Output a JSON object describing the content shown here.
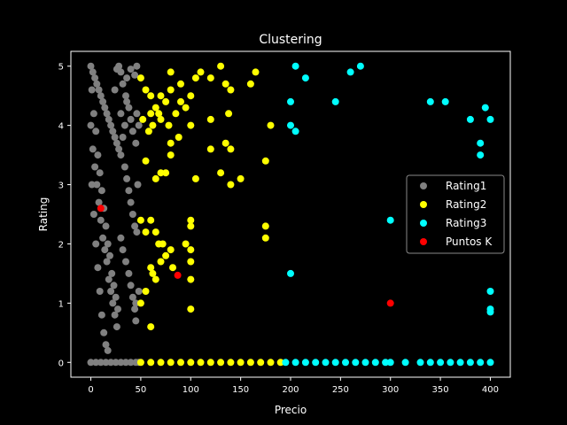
{
  "chart_data": {
    "type": "scatter",
    "title": "Clustering",
    "xlabel": "Precio",
    "ylabel": "Rating",
    "xlim": [
      -20,
      420
    ],
    "ylim": [
      -0.25,
      5.25
    ],
    "xticks": [
      0,
      50,
      100,
      150,
      200,
      250,
      300,
      350,
      400
    ],
    "yticks": [
      0,
      1,
      2,
      3,
      4,
      5
    ],
    "grid": false,
    "legend_position": "center-right",
    "background": "#000000",
    "series": [
      {
        "name": "Rating1",
        "color": "#808080",
        "points": [
          [
            0,
            5
          ],
          [
            2,
            4.9
          ],
          [
            4,
            4.8
          ],
          [
            6,
            4.7
          ],
          [
            8,
            4.6
          ],
          [
            10,
            4.5
          ],
          [
            12,
            4.4
          ],
          [
            14,
            4.3
          ],
          [
            16,
            4.2
          ],
          [
            18,
            4.1
          ],
          [
            20,
            4.0
          ],
          [
            22,
            3.9
          ],
          [
            24,
            3.8
          ],
          [
            26,
            3.7
          ],
          [
            28,
            3.6
          ],
          [
            30,
            3.5
          ],
          [
            1,
            4.6
          ],
          [
            3,
            4.2
          ],
          [
            5,
            3.9
          ],
          [
            7,
            3.5
          ],
          [
            9,
            3.2
          ],
          [
            11,
            2.9
          ],
          [
            13,
            2.6
          ],
          [
            15,
            2.3
          ],
          [
            17,
            2.0
          ],
          [
            19,
            1.8
          ],
          [
            21,
            1.5
          ],
          [
            23,
            1.3
          ],
          [
            25,
            1.1
          ],
          [
            27,
            0.9
          ],
          [
            0,
            4.0
          ],
          [
            2,
            3.6
          ],
          [
            4,
            3.3
          ],
          [
            6,
            3.0
          ],
          [
            8,
            2.7
          ],
          [
            10,
            2.4
          ],
          [
            12,
            2.1
          ],
          [
            14,
            1.9
          ],
          [
            16,
            1.7
          ],
          [
            18,
            1.4
          ],
          [
            20,
            1.2
          ],
          [
            22,
            1.0
          ],
          [
            24,
            0.8
          ],
          [
            26,
            0.6
          ],
          [
            1,
            3.0
          ],
          [
            3,
            2.5
          ],
          [
            5,
            2.0
          ],
          [
            7,
            1.6
          ],
          [
            9,
            1.2
          ],
          [
            11,
            0.8
          ],
          [
            13,
            0.5
          ],
          [
            15,
            0.3
          ],
          [
            17,
            0.2
          ],
          [
            30,
            4.9
          ],
          [
            32,
            4.7
          ],
          [
            35,
            4.5
          ],
          [
            38,
            4.3
          ],
          [
            40,
            4.1
          ],
          [
            42,
            3.9
          ],
          [
            45,
            3.7
          ],
          [
            34,
            3.3
          ],
          [
            36,
            3.1
          ],
          [
            38,
            2.9
          ],
          [
            40,
            2.7
          ],
          [
            42,
            2.5
          ],
          [
            44,
            2.3
          ],
          [
            30,
            2.1
          ],
          [
            32,
            1.9
          ],
          [
            35,
            1.7
          ],
          [
            38,
            1.5
          ],
          [
            40,
            1.3
          ],
          [
            42,
            1.1
          ],
          [
            44,
            0.9
          ],
          [
            45,
            0.7
          ],
          [
            28,
            5
          ],
          [
            26,
            4.95
          ],
          [
            24,
            4.6
          ],
          [
            30,
            4.2
          ],
          [
            32,
            3.8
          ],
          [
            34,
            4.0
          ],
          [
            36,
            4.4
          ],
          [
            46,
            4.2
          ],
          [
            48,
            4.0
          ],
          [
            47,
            3.0
          ],
          [
            46,
            2.2
          ],
          [
            48,
            1.2
          ],
          [
            45,
            1.0
          ],
          [
            46,
            5.0
          ],
          [
            44,
            4.85
          ],
          [
            40,
            4.95
          ],
          [
            36,
            4.8
          ],
          [
            0,
            0
          ],
          [
            5,
            0
          ],
          [
            10,
            0
          ],
          [
            15,
            0
          ],
          [
            20,
            0
          ],
          [
            25,
            0
          ],
          [
            30,
            0
          ],
          [
            35,
            0
          ],
          [
            40,
            0
          ],
          [
            45,
            0
          ],
          [
            48,
            0
          ]
        ]
      },
      {
        "name": "Rating2",
        "color": "#ffff00",
        "points": [
          [
            50,
            4.8
          ],
          [
            55,
            4.6
          ],
          [
            60,
            4.5
          ],
          [
            65,
            4.3
          ],
          [
            70,
            4.1
          ],
          [
            75,
            4.4
          ],
          [
            80,
            4.6
          ],
          [
            85,
            4.2
          ],
          [
            90,
            4.7
          ],
          [
            95,
            4.3
          ],
          [
            100,
            4.5
          ],
          [
            105,
            4.8
          ],
          [
            110,
            4.9
          ],
          [
            120,
            4.8
          ],
          [
            130,
            5.0
          ],
          [
            135,
            4.7
          ],
          [
            140,
            4.6
          ],
          [
            160,
            4.7
          ],
          [
            165,
            4.9
          ],
          [
            80,
            4.9
          ],
          [
            90,
            4.4
          ],
          [
            52,
            4.1
          ],
          [
            58,
            3.9
          ],
          [
            62,
            4.0
          ],
          [
            68,
            4.2
          ],
          [
            78,
            4.0
          ],
          [
            88,
            3.8
          ],
          [
            100,
            4.0
          ],
          [
            120,
            4.1
          ],
          [
            138,
            4.2
          ],
          [
            180,
            4.0
          ],
          [
            60,
            4.2
          ],
          [
            70,
            4.5
          ],
          [
            55,
            3.4
          ],
          [
            65,
            3.1
          ],
          [
            70,
            3.2
          ],
          [
            75,
            3.2
          ],
          [
            80,
            3.5
          ],
          [
            80,
            3.7
          ],
          [
            105,
            3.1
          ],
          [
            120,
            3.6
          ],
          [
            130,
            3.2
          ],
          [
            135,
            3.7
          ],
          [
            140,
            3.0
          ],
          [
            140,
            3.6
          ],
          [
            150,
            3.1
          ],
          [
            175,
            3.4
          ],
          [
            50,
            2.4
          ],
          [
            55,
            2.2
          ],
          [
            60,
            2.4
          ],
          [
            65,
            2.2
          ],
          [
            68,
            2.0
          ],
          [
            72,
            2.0
          ],
          [
            75,
            1.8
          ],
          [
            80,
            1.9
          ],
          [
            82,
            1.6
          ],
          [
            95,
            2.0
          ],
          [
            100,
            1.9
          ],
          [
            100,
            2.3
          ],
          [
            100,
            2.4
          ],
          [
            175,
            2.3
          ],
          [
            175,
            2.1
          ],
          [
            55,
            1.2
          ],
          [
            60,
            1.6
          ],
          [
            62,
            1.5
          ],
          [
            65,
            1.4
          ],
          [
            70,
            1.7
          ],
          [
            100,
            1.7
          ],
          [
            100,
            1.4
          ],
          [
            100,
            0.9
          ],
          [
            60,
            0.6
          ],
          [
            50,
            1.0
          ],
          [
            50,
            0
          ],
          [
            60,
            0
          ],
          [
            70,
            0
          ],
          [
            80,
            0
          ],
          [
            90,
            0
          ],
          [
            100,
            0
          ],
          [
            110,
            0
          ],
          [
            120,
            0
          ],
          [
            130,
            0
          ],
          [
            140,
            0
          ],
          [
            150,
            0
          ],
          [
            160,
            0
          ],
          [
            170,
            0
          ],
          [
            180,
            0
          ],
          [
            190,
            0
          ]
        ]
      },
      {
        "name": "Rating3",
        "color": "#00ffff",
        "points": [
          [
            205,
            5.0
          ],
          [
            215,
            4.8
          ],
          [
            200,
            4.4
          ],
          [
            245,
            4.4
          ],
          [
            260,
            4.9
          ],
          [
            270,
            5.0
          ],
          [
            340,
            4.4
          ],
          [
            355,
            4.4
          ],
          [
            380,
            4.1
          ],
          [
            395,
            4.3
          ],
          [
            400,
            4.1
          ],
          [
            390,
            3.7
          ],
          [
            390,
            3.5
          ],
          [
            200,
            4.0
          ],
          [
            205,
            3.9
          ],
          [
            300,
            2.4
          ],
          [
            200,
            1.5
          ],
          [
            400,
            1.2
          ],
          [
            400,
            0.9
          ],
          [
            400,
            0.85
          ],
          [
            195,
            0
          ],
          [
            205,
            0
          ],
          [
            215,
            0
          ],
          [
            225,
            0
          ],
          [
            235,
            0
          ],
          [
            245,
            0
          ],
          [
            255,
            0
          ],
          [
            265,
            0
          ],
          [
            275,
            0
          ],
          [
            285,
            0
          ],
          [
            295,
            0
          ],
          [
            300,
            0
          ],
          [
            315,
            0
          ],
          [
            330,
            0
          ],
          [
            340,
            0
          ],
          [
            350,
            0
          ],
          [
            360,
            0
          ],
          [
            370,
            0
          ],
          [
            380,
            0
          ],
          [
            390,
            0
          ],
          [
            400,
            0
          ]
        ]
      },
      {
        "name": "Puntos K",
        "color": "#ff0000",
        "points": [
          [
            10,
            2.6
          ],
          [
            87,
            1.47
          ],
          [
            300,
            1.0
          ]
        ]
      }
    ]
  }
}
